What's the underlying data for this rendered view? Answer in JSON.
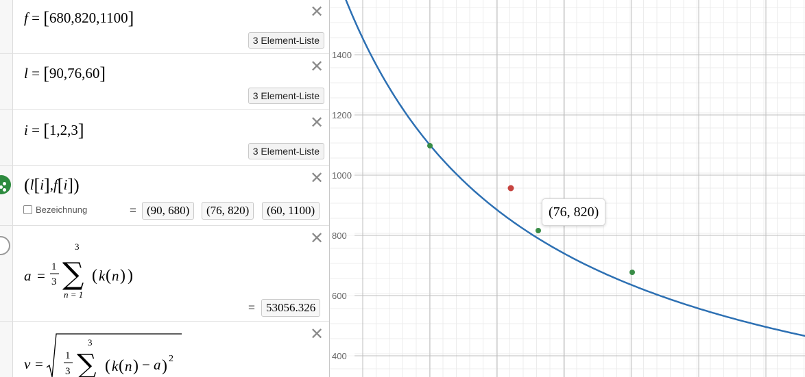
{
  "expressions": [
    {
      "var": "f",
      "values": "680,820,1100",
      "badge": "3 Element-Liste"
    },
    {
      "var": "l",
      "values": "90,76,60",
      "badge": "3 Element-Liste"
    },
    {
      "var": "i",
      "values": "1,2,3",
      "badge": "3 Element-Liste"
    }
  ],
  "point_expr": {
    "x_list": "l",
    "y_list": "f",
    "index": "i",
    "label_checkbox": "Bezeichnung",
    "results": [
      "(90, 680)",
      "(76, 820)",
      "(60, 1100)"
    ]
  },
  "mean_expr": {
    "var": "a",
    "frac_num": "1",
    "frac_den": "3",
    "upper": "3",
    "lower": "n = 1",
    "body_fn": "k",
    "body_arg": "n",
    "result": "53056.326"
  },
  "sd_expr": {
    "var": "v",
    "frac_num": "1",
    "frac_den": "3",
    "upper": "3",
    "body_fn": "k",
    "body_arg": "n",
    "minus": "a",
    "power": "2"
  },
  "graph": {
    "y_tick_labels": [
      "1400",
      "1200",
      "1000",
      "800",
      "600",
      "400"
    ],
    "tooltip": "(76, 820)",
    "curve_color": "#2d70b3",
    "point_color": "#388c46",
    "red_point_color": "#c74440"
  }
}
